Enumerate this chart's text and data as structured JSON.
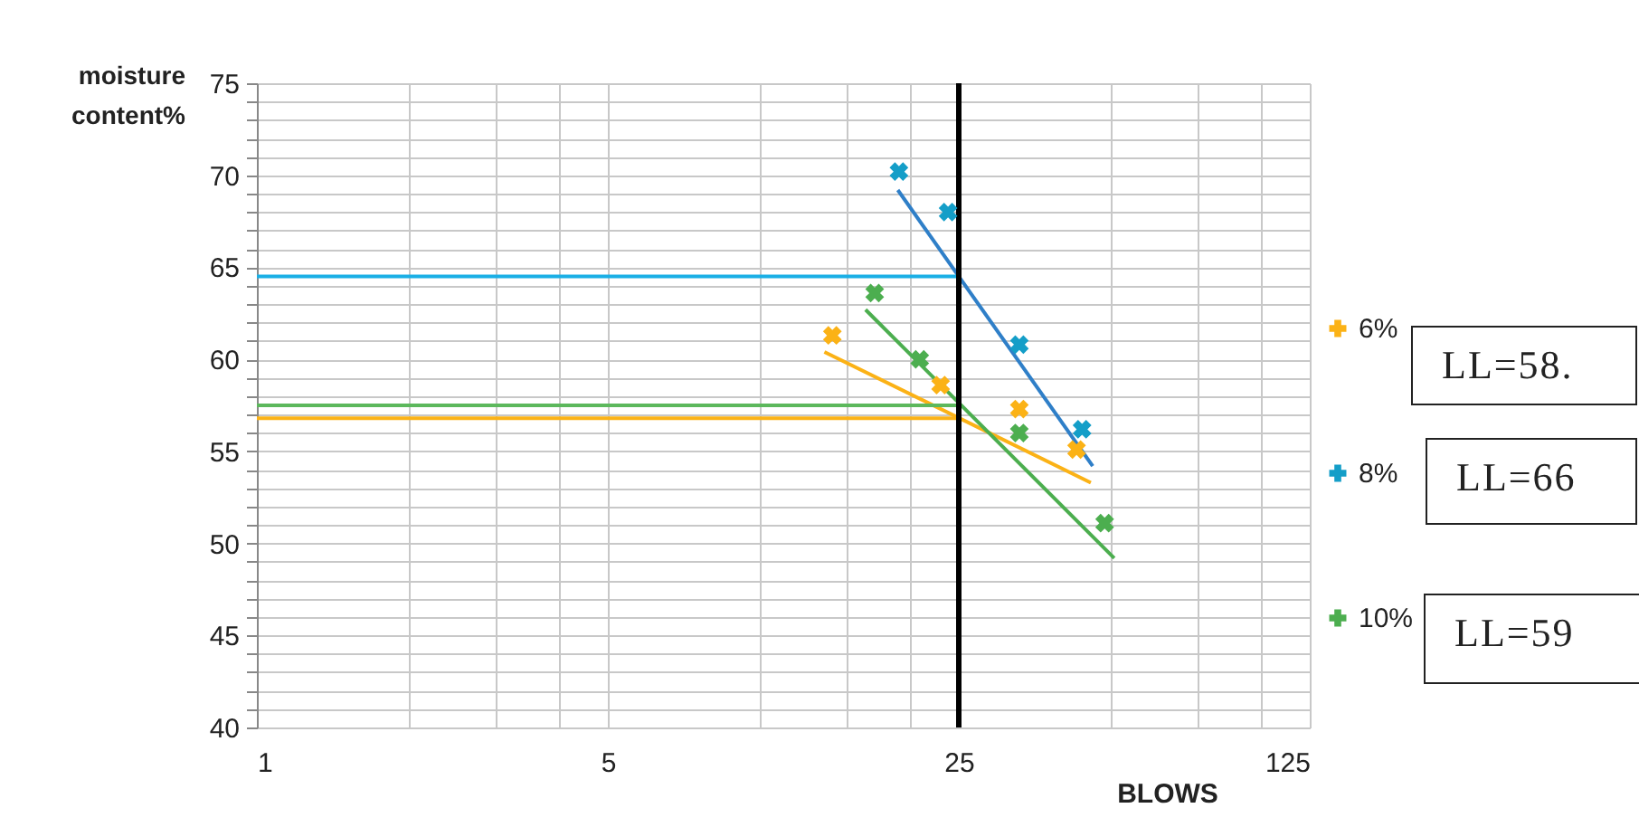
{
  "chart_data": {
    "type": "scatter",
    "xlabel": "BLOWS",
    "ylabel": "moisture content%",
    "log": "x",
    "marker": "cross",
    "grid": true,
    "legend": "right",
    "xlim": [
      1,
      125
    ],
    "ylim": [
      40,
      75
    ],
    "xticks": [
      1,
      {
        "value": 2,
        "label": null
      },
      {
        "value": 3,
        "label": null
      },
      {
        "value": 4,
        "label": null
      },
      5,
      {
        "value": 10,
        "label": null
      },
      {
        "value": 15,
        "label": null
      },
      {
        "value": 20,
        "label": null
      },
      25,
      {
        "value": 50,
        "label": null
      },
      {
        "value": 75,
        "label": null
      },
      {
        "value": 100,
        "label": null
      },
      125
    ],
    "yticks": [
      40,
      {
        "value": 41,
        "label": null
      },
      {
        "value": 42,
        "label": null
      },
      {
        "value": 43,
        "label": null
      },
      {
        "value": 44,
        "label": null
      },
      45,
      {
        "value": 46,
        "label": null
      },
      {
        "value": 47,
        "label": null
      },
      {
        "value": 48,
        "label": null
      },
      {
        "value": 49,
        "label": null
      },
      50,
      {
        "value": 51,
        "label": null
      },
      {
        "value": 52,
        "label": null
      },
      {
        "value": 53,
        "label": null
      },
      {
        "value": 54,
        "label": null
      },
      55,
      {
        "value": 56,
        "label": null
      },
      {
        "value": 57,
        "label": null
      },
      {
        "value": 58,
        "label": null
      },
      {
        "value": 59,
        "label": null
      },
      60,
      {
        "value": 61,
        "label": null
      },
      {
        "value": 62,
        "label": null
      },
      {
        "value": 63,
        "label": null
      },
      {
        "value": 64,
        "label": null
      },
      65,
      {
        "value": 66,
        "label": null
      },
      {
        "value": 67,
        "label": null
      },
      {
        "value": 68,
        "label": null
      },
      {
        "value": 69,
        "label": null
      },
      70,
      {
        "value": 71,
        "label": null
      },
      {
        "value": 72,
        "label": null
      },
      {
        "value": 73,
        "label": null
      },
      {
        "value": 74,
        "label": null
      },
      75
    ],
    "series": [
      {
        "name": "6%",
        "color": "#fbb216",
        "x": [
          14.0,
          23.0,
          33.0,
          42.9
        ],
        "values": [
          61.3,
          58.6,
          57.3,
          55.1
        ]
      },
      {
        "name": "8%",
        "color": "#149ec8",
        "x": [
          19.0,
          23.8,
          33.0,
          44.0
        ],
        "values": [
          70.2,
          68.0,
          60.8,
          56.2
        ]
      },
      {
        "name": "10%",
        "color": "#4cae4f",
        "x": [
          17.0,
          20.9,
          33.0,
          48.8
        ],
        "values": [
          63.6,
          60.0,
          56.0,
          51.1
        ]
      },
      {
        "type": "line",
        "marker": "none",
        "color": "#fbb216",
        "x": [
          13.5,
          45.8
        ],
        "values": [
          60.4,
          53.3
        ]
      },
      {
        "type": "line",
        "marker": "none",
        "color": "#2f7fc8",
        "x": [
          18.9,
          46.2
        ],
        "values": [
          69.2,
          54.2
        ]
      },
      {
        "type": "line",
        "marker": "none",
        "color": "#4cae4f",
        "x": [
          16.3,
          51.0
        ],
        "values": [
          62.7,
          49.2
        ]
      },
      {
        "type": "line",
        "marker": "none",
        "color": "#fbb216",
        "x": [
          1,
          25
        ],
        "values": [
          56.8,
          56.8
        ]
      },
      {
        "type": "line",
        "marker": "none",
        "color": "#1aafe6",
        "x": [
          1,
          25
        ],
        "values": [
          64.5,
          64.5
        ]
      },
      {
        "type": "line",
        "marker": "none",
        "color": "#5cb85c",
        "x": [
          1,
          25
        ],
        "values": [
          57.5,
          57.5
        ]
      }
    ],
    "ref_lines": [
      {
        "axis": "x",
        "value": 25,
        "color": "#000000"
      }
    ],
    "annotations": [
      "LL=58.",
      "LL=66",
      "LL=59"
    ]
  }
}
